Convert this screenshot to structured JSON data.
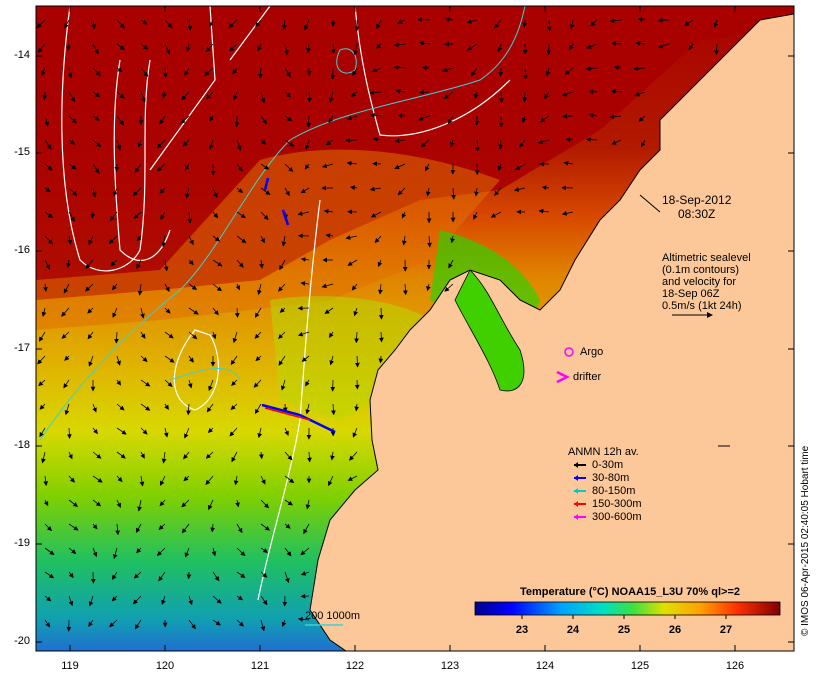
{
  "map": {
    "date_line1": "18-Sep-2012",
    "date_line2": "08:30Z",
    "altimetry_line1": "Altimetric sealevel",
    "altimetry_line2": "(0.1m contours)",
    "altimetry_line3": "and velocity for",
    "altimetry_line4": "18-Sep 06Z",
    "altimetry_line5": "0.5m/s (1kt 24h)",
    "argo_label": "Argo",
    "drifter_label": "drifter",
    "depth_contour_label": "200  1000m",
    "credit": "© IMOS 06-Apr-2015 02:40:05 Hobart time"
  },
  "axes": {
    "lat_ticks": [
      "-14",
      "-15",
      "-16",
      "-17",
      "-18",
      "-19",
      "-20"
    ],
    "lon_ticks": [
      "119",
      "120",
      "121",
      "122",
      "123",
      "124",
      "125",
      "126"
    ]
  },
  "anmn_legend": {
    "title": "ANMN 12h av.",
    "items": [
      {
        "label": "0-30m",
        "color": "#000000"
      },
      {
        "label": "30-80m",
        "color": "#0000ff"
      },
      {
        "label": "80-150m",
        "color": "#00cccc"
      },
      {
        "label": "150-300m",
        "color": "#ff0000"
      },
      {
        "label": "300-600m",
        "color": "#ff00ff"
      }
    ]
  },
  "colorbar": {
    "title": "Temperature (°C) NOAA15_L3U 70% ql>=2",
    "ticks": [
      "23",
      "24",
      "25",
      "26",
      "27"
    ],
    "min": 22.2,
    "max": 28.2
  },
  "colors": {
    "land": "#fcc89a",
    "argo": "#ff00ff",
    "drifter": "#ff00ff",
    "sealevel_contour": "#ffffff",
    "depth_contour": "#40d0d0"
  }
}
